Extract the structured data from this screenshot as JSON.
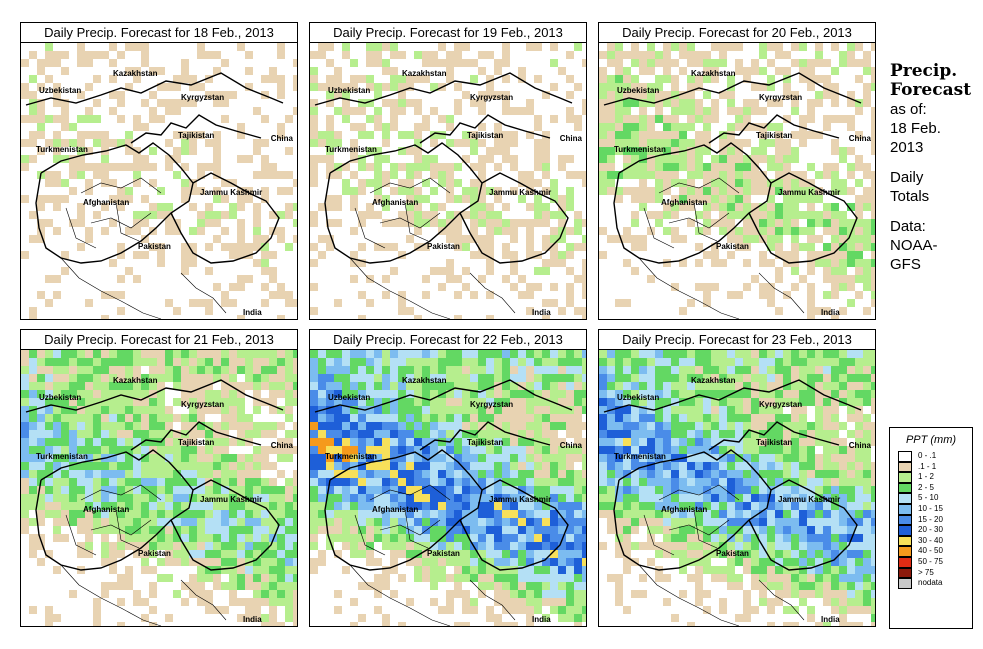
{
  "panels": [
    {
      "title": "Daily Precip. Forecast for  18 Feb., 2013",
      "intensity": 0.15
    },
    {
      "title": "Daily Precip. Forecast for  19 Feb., 2013",
      "intensity": 0.2
    },
    {
      "title": "Daily Precip. Forecast for  20 Feb., 2013",
      "intensity": 0.3
    },
    {
      "title": "Daily Precip. Forecast for  21 Feb., 2013",
      "intensity": 0.55
    },
    {
      "title": "Daily Precip. Forecast for  22 Feb., 2013",
      "intensity": 0.85
    },
    {
      "title": "Daily Precip. Forecast for  23 Feb., 2013",
      "intensity": 0.75
    }
  ],
  "map_labels": [
    "Kazakhstan",
    "Uzbekistan",
    "Kyrgyzstan",
    "Tajikistan",
    "Turkmenistan",
    "China",
    "Afghanistan",
    "Jammu Kashmir",
    "Pakistan",
    "India"
  ],
  "sidebar": {
    "title_line1": "Precip.",
    "title_line2": "Forecast",
    "asof_line1": "as of:",
    "asof_line2": "18 Feb.",
    "asof_line3": "2013",
    "totals_line1": "Daily",
    "totals_line2": "Totals",
    "data_line1": "Data:",
    "data_line2": "NOAA-",
    "data_line3": "GFS"
  },
  "legend": {
    "title": "PPT (mm)",
    "items": [
      {
        "label": "0 - .1",
        "color": "#ffffff"
      },
      {
        "label": ".1 - 1",
        "color": "#e8d3b2"
      },
      {
        "label": "1 - 2",
        "color": "#b6ee8e"
      },
      {
        "label": "2 - 5",
        "color": "#63d863"
      },
      {
        "label": "5 - 10",
        "color": "#b4e0f5"
      },
      {
        "label": "10 - 15",
        "color": "#7cbcf0"
      },
      {
        "label": "15 - 20",
        "color": "#4a8ce8"
      },
      {
        "label": "20 - 30",
        "color": "#1e5fd8"
      },
      {
        "label": "30 - 40",
        "color": "#f7e05a"
      },
      {
        "label": "40 - 50",
        "color": "#f59a1c"
      },
      {
        "label": "50 - 75",
        "color": "#e02c14"
      },
      {
        "label": "> 75",
        "color": "#8c1a0c"
      },
      {
        "label": "nodata",
        "color": "#c8c8c8"
      }
    ]
  }
}
